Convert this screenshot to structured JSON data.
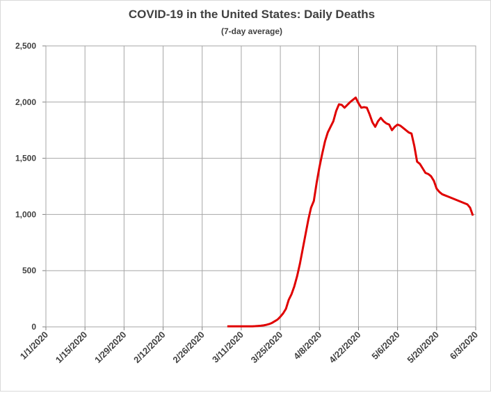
{
  "chart_data": {
    "type": "line",
    "title": "COVID-19 in the United States: Daily Deaths",
    "subtitle": "(7-day average)",
    "x": [
      "3/6/2020",
      "3/7/2020",
      "3/8/2020",
      "3/9/2020",
      "3/10/2020",
      "3/11/2020",
      "3/12/2020",
      "3/13/2020",
      "3/14/2020",
      "3/15/2020",
      "3/16/2020",
      "3/17/2020",
      "3/18/2020",
      "3/19/2020",
      "3/20/2020",
      "3/21/2020",
      "3/22/2020",
      "3/23/2020",
      "3/24/2020",
      "3/25/2020",
      "3/26/2020",
      "3/27/2020",
      "3/28/2020",
      "3/29/2020",
      "3/30/2020",
      "3/31/2020",
      "4/1/2020",
      "4/2/2020",
      "4/3/2020",
      "4/4/2020",
      "4/5/2020",
      "4/6/2020",
      "4/7/2020",
      "4/8/2020",
      "4/9/2020",
      "4/10/2020",
      "4/11/2020",
      "4/12/2020",
      "4/13/2020",
      "4/14/2020",
      "4/15/2020",
      "4/16/2020",
      "4/17/2020",
      "4/18/2020",
      "4/19/2020",
      "4/20/2020",
      "4/21/2020",
      "4/22/2020",
      "4/23/2020",
      "4/24/2020",
      "4/25/2020",
      "4/26/2020",
      "4/27/2020",
      "4/28/2020",
      "4/29/2020",
      "4/30/2020",
      "5/1/2020",
      "5/2/2020",
      "5/3/2020",
      "5/4/2020",
      "5/5/2020",
      "5/6/2020",
      "5/7/2020",
      "5/8/2020",
      "5/9/2020",
      "5/10/2020",
      "5/11/2020",
      "5/12/2020",
      "5/13/2020",
      "5/14/2020",
      "5/15/2020",
      "5/16/2020",
      "5/17/2020",
      "5/18/2020",
      "5/19/2020",
      "5/20/2020",
      "5/21/2020",
      "5/22/2020",
      "5/23/2020",
      "5/24/2020",
      "5/25/2020",
      "5/26/2020",
      "5/27/2020",
      "5/28/2020",
      "5/29/2020",
      "5/30/2020",
      "5/31/2020",
      "6/1/2020",
      "6/2/2020"
    ],
    "series": [
      {
        "name": "Daily Deaths",
        "color": "#e00000",
        "values": [
          5,
          5,
          5,
          5,
          5,
          5,
          5,
          5,
          5,
          5,
          6,
          8,
          10,
          13,
          18,
          25,
          35,
          50,
          65,
          90,
          120,
          160,
          240,
          290,
          360,
          450,
          560,
          690,
          820,
          950,
          1060,
          1120,
          1280,
          1420,
          1540,
          1650,
          1730,
          1780,
          1830,
          1920,
          1980,
          1975,
          1950,
          1975,
          2000,
          2020,
          2040,
          1990,
          1950,
          1955,
          1950,
          1890,
          1820,
          1780,
          1830,
          1860,
          1830,
          1810,
          1800,
          1750,
          1780,
          1800,
          1790,
          1770,
          1750,
          1730,
          1720,
          1610,
          1470,
          1450,
          1410,
          1370,
          1360,
          1340,
          1300,
          1230,
          1200,
          1180,
          1170,
          1160,
          1150,
          1140,
          1130,
          1120,
          1110,
          1100,
          1090,
          1060,
          990
        ]
      }
    ],
    "xlim": [
      "1/1/2020",
      "6/3/2020"
    ],
    "xticks": [
      "1/1/2020",
      "1/15/2020",
      "1/29/2020",
      "2/12/2020",
      "2/26/2020",
      "3/11/2020",
      "3/25/2020",
      "4/8/2020",
      "4/22/2020",
      "5/6/2020",
      "5/20/2020",
      "6/3/2020"
    ],
    "ylim": [
      0,
      2500
    ],
    "yticks": [
      0,
      500,
      {
        "value": 1000,
        "label": "1,000"
      },
      {
        "value": 1500,
        "label": "1,500"
      },
      {
        "value": 2000,
        "label": "2,000"
      },
      {
        "value": 2500,
        "label": "2,500"
      }
    ],
    "grid": true
  }
}
